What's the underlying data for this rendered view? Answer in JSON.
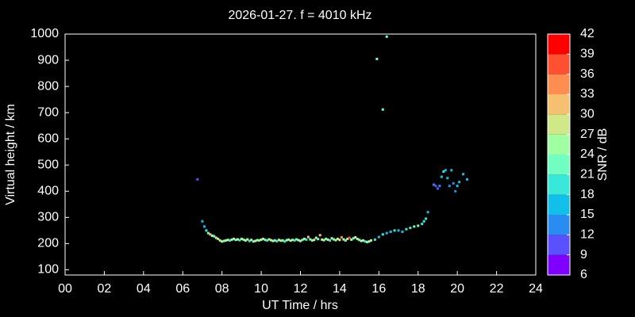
{
  "chart_data": {
    "type": "scatter",
    "title": "2026-01-27. f = 4010 kHz",
    "xlabel": "UT Time / hrs",
    "ylabel": "Virtual height / km",
    "xlim": [
      0,
      24
    ],
    "ylim": [
      80,
      1000
    ],
    "xticks": [
      {
        "value": 0,
        "label": "00"
      },
      {
        "value": 2,
        "label": "02"
      },
      {
        "value": 4,
        "label": "04"
      },
      {
        "value": 6,
        "label": "06"
      },
      {
        "value": 8,
        "label": "08"
      },
      10,
      12,
      14,
      16,
      18,
      20,
      22,
      24
    ],
    "yticks": [
      100,
      200,
      300,
      400,
      500,
      600,
      700,
      800,
      900,
      1000
    ],
    "colorbar": {
      "label": "SNR / dB",
      "levels": [
        6,
        9,
        12,
        15,
        18,
        21,
        24,
        27,
        30,
        33,
        36,
        39,
        42
      ],
      "colors": [
        "#7f00ff",
        "#5a50ff",
        "#2a8cf0",
        "#10c0e8",
        "#38e8d8",
        "#70ffc0",
        "#a0ffa0",
        "#d0e888",
        "#f5c070",
        "#ff8c50",
        "#ff5030",
        "#ff0000"
      ]
    },
    "x": [
      6.75,
      7.0,
      7.1,
      7.2,
      7.3,
      7.4,
      7.5,
      7.6,
      7.7,
      7.8,
      7.9,
      8.0,
      8.1,
      8.2,
      8.3,
      8.4,
      8.5,
      8.6,
      8.7,
      8.8,
      8.9,
      9.0,
      9.1,
      9.2,
      9.3,
      9.4,
      9.5,
      9.6,
      9.7,
      9.8,
      9.9,
      10.0,
      10.1,
      10.2,
      10.3,
      10.4,
      10.5,
      10.6,
      10.7,
      10.8,
      10.9,
      11.0,
      11.1,
      11.2,
      11.3,
      11.4,
      11.5,
      11.6,
      11.7,
      11.8,
      11.9,
      12.0,
      12.1,
      12.2,
      12.3,
      12.4,
      12.5,
      12.6,
      12.7,
      12.8,
      12.9,
      13.0,
      13.1,
      13.2,
      13.3,
      13.4,
      13.5,
      13.6,
      13.7,
      13.8,
      13.9,
      14.0,
      14.1,
      14.2,
      14.3,
      14.4,
      14.5,
      14.6,
      14.7,
      14.8,
      14.9,
      15.0,
      15.1,
      15.2,
      15.3,
      15.4,
      15.5,
      15.6,
      15.8,
      16.0,
      16.2,
      16.4,
      16.6,
      16.8,
      17.0,
      17.2,
      17.4,
      17.6,
      17.8,
      18.0,
      18.2,
      18.3,
      18.4,
      18.5,
      18.8,
      18.9,
      19.0,
      19.1,
      19.2,
      19.3,
      19.4,
      19.5,
      19.6,
      19.7,
      19.8,
      19.9,
      20.0,
      20.1,
      20.3,
      20.5,
      15.9,
      16.2,
      16.4
    ],
    "values": [
      445,
      285,
      265,
      250,
      240,
      235,
      230,
      228,
      222,
      218,
      212,
      208,
      210,
      212,
      214,
      212,
      215,
      218,
      214,
      216,
      213,
      218,
      215,
      212,
      216,
      210,
      214,
      208,
      210,
      213,
      212,
      215,
      218,
      214,
      212,
      216,
      213,
      210,
      212,
      209,
      214,
      211,
      212,
      208,
      213,
      215,
      211,
      214,
      212,
      216,
      213,
      210,
      214,
      218,
      215,
      225,
      216,
      212,
      214,
      222,
      217,
      232,
      215,
      213,
      218,
      215,
      212,
      220,
      216,
      213,
      218,
      214,
      224,
      216,
      212,
      218,
      222,
      215,
      220,
      224,
      218,
      214,
      210,
      212,
      208,
      206,
      208,
      212,
      215,
      225,
      235,
      240,
      245,
      250,
      250,
      245,
      255,
      260,
      265,
      268,
      275,
      285,
      295,
      320,
      425,
      420,
      410,
      420,
      455,
      475,
      480,
      450,
      420,
      480,
      430,
      400,
      420,
      435,
      465,
      445,
      905,
      712,
      990
    ],
    "snr": [
      9,
      15,
      15,
      18,
      21,
      30,
      24,
      21,
      24,
      27,
      27,
      24,
      21,
      27,
      24,
      18,
      24,
      27,
      21,
      24,
      18,
      27,
      21,
      24,
      27,
      18,
      24,
      21,
      27,
      24,
      21,
      24,
      27,
      21,
      18,
      24,
      27,
      24,
      21,
      18,
      24,
      27,
      21,
      18,
      24,
      21,
      27,
      24,
      18,
      21,
      24,
      27,
      21,
      24,
      18,
      30,
      24,
      21,
      27,
      24,
      21,
      30,
      27,
      24,
      21,
      27,
      18,
      24,
      21,
      27,
      24,
      27,
      33,
      24,
      21,
      27,
      36,
      24,
      21,
      27,
      24,
      21,
      27,
      24,
      18,
      21,
      24,
      27,
      18,
      15,
      18,
      15,
      15,
      18,
      15,
      15,
      18,
      18,
      21,
      21,
      18,
      18,
      18,
      15,
      12,
      9,
      9,
      12,
      15,
      18,
      15,
      15,
      12,
      15,
      12,
      12,
      15,
      15,
      15,
      15,
      21,
      21,
      21
    ]
  }
}
